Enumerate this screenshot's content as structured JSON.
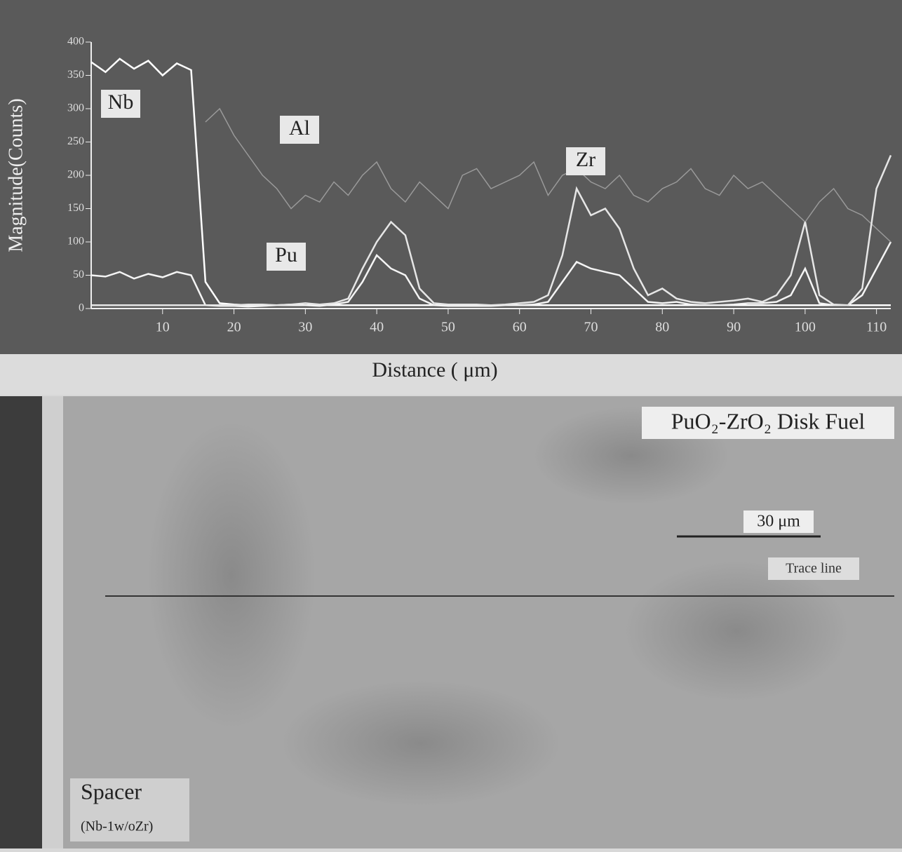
{
  "chart_data": {
    "type": "line",
    "y_label": "Magnitude(Counts)",
    "x_label": "Distance ( μm)",
    "x": [
      0,
      2,
      4,
      6,
      8,
      10,
      12,
      14,
      16,
      18,
      20,
      22,
      24,
      26,
      28,
      30,
      32,
      34,
      36,
      38,
      40,
      42,
      44,
      46,
      48,
      50,
      52,
      54,
      56,
      58,
      60,
      62,
      64,
      66,
      68,
      70,
      72,
      74,
      76,
      78,
      80,
      82,
      84,
      86,
      88,
      90,
      92,
      94,
      96,
      98,
      100,
      102,
      104,
      106,
      108,
      110,
      112
    ],
    "series": [
      {
        "name": "Nb",
        "color": "#ffffff",
        "values": [
          370,
          355,
          375,
          360,
          372,
          350,
          368,
          358,
          40,
          8,
          6,
          5,
          5,
          5,
          5,
          5,
          5,
          5,
          5,
          5,
          5,
          5,
          5,
          5,
          5,
          5,
          5,
          5,
          5,
          5,
          5,
          5,
          5,
          5,
          5,
          5,
          5,
          5,
          5,
          5,
          5,
          5,
          5,
          5,
          5,
          5,
          5,
          5,
          5,
          5,
          5,
          5,
          5,
          5,
          5,
          5,
          5
        ]
      },
      {
        "name": "Pu",
        "color": "#f4f4f4",
        "values": [
          50,
          48,
          55,
          45,
          52,
          47,
          55,
          50,
          5,
          4,
          4,
          3,
          4,
          5,
          6,
          5,
          4,
          6,
          10,
          40,
          80,
          60,
          50,
          15,
          5,
          4,
          4,
          4,
          4,
          5,
          5,
          6,
          10,
          40,
          70,
          60,
          55,
          50,
          30,
          10,
          8,
          10,
          6,
          5,
          5,
          6,
          8,
          8,
          10,
          20,
          60,
          8,
          5,
          5,
          20,
          60,
          100
        ]
      },
      {
        "name": "Al",
        "color": "#9a9a9a",
        "values": [
          null,
          null,
          null,
          null,
          null,
          null,
          null,
          null,
          280,
          300,
          260,
          230,
          200,
          180,
          150,
          170,
          160,
          190,
          170,
          200,
          220,
          180,
          160,
          190,
          170,
          150,
          200,
          210,
          180,
          190,
          200,
          220,
          170,
          200,
          210,
          190,
          180,
          200,
          170,
          160,
          180,
          190,
          210,
          180,
          170,
          200,
          180,
          190,
          170,
          150,
          130,
          160,
          180,
          150,
          140,
          120,
          100
        ]
      },
      {
        "name": "Zr",
        "color": "#e6e6e6",
        "values": [
          5,
          5,
          5,
          5,
          5,
          5,
          5,
          5,
          5,
          5,
          5,
          6,
          6,
          5,
          6,
          8,
          6,
          8,
          15,
          60,
          100,
          130,
          110,
          30,
          8,
          6,
          6,
          6,
          5,
          6,
          8,
          10,
          20,
          80,
          180,
          140,
          150,
          120,
          60,
          20,
          30,
          15,
          10,
          8,
          10,
          12,
          15,
          10,
          20,
          50,
          130,
          20,
          6,
          5,
          30,
          180,
          230
        ]
      }
    ],
    "xlim": [
      0,
      112
    ],
    "ylim": [
      0,
      400
    ],
    "xticks": [
      10,
      20,
      30,
      40,
      50,
      60,
      70,
      80,
      90,
      100,
      110
    ],
    "yticks": [
      0,
      50,
      100,
      150,
      200,
      250,
      300,
      350,
      400
    ]
  },
  "micrograph": {
    "title": "PuO₂-ZrO₂ Disk Fuel",
    "trace_label": "Trace line",
    "scale_bar": "30 μm",
    "spacer": "Spacer",
    "spacer_alloy": "(Nb-1w/oZr)"
  }
}
